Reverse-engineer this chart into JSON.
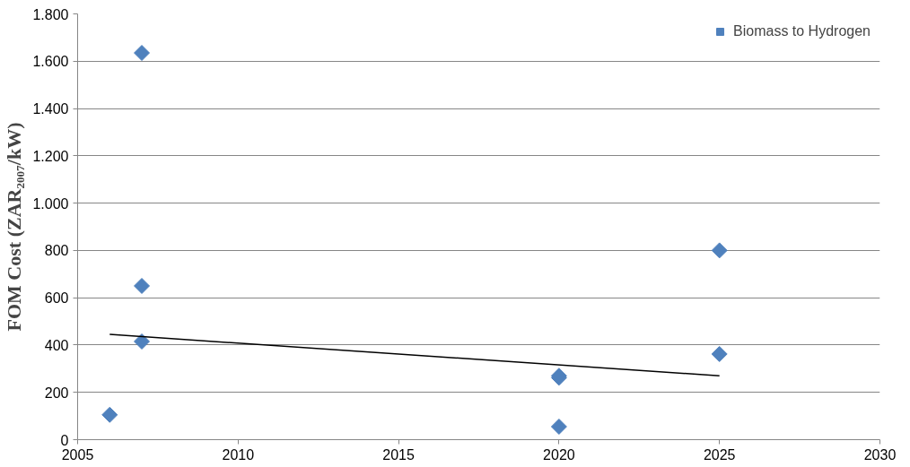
{
  "chart_data": {
    "type": "scatter",
    "ylabel": "FOM Cost (ZAR₂₀₀₇/kW)",
    "xlim": [
      2005,
      2030
    ],
    "xticks": [
      2005,
      2010,
      2015,
      2020,
      2025,
      2030
    ],
    "ylim": [
      0,
      1800
    ],
    "yticks": [
      {
        "value": 0,
        "label": "0"
      },
      {
        "value": 200,
        "label": "200"
      },
      {
        "value": 400,
        "label": "400"
      },
      {
        "value": 600,
        "label": "600"
      },
      {
        "value": 800,
        "label": "800"
      },
      {
        "value": 1000,
        "label": "1.000"
      },
      {
        "value": 1200,
        "label": "1.200"
      },
      {
        "value": 1400,
        "label": "1.400"
      },
      {
        "value": 1600,
        "label": "1.600"
      },
      {
        "value": 1800,
        "label": "1.800"
      }
    ],
    "grid": "y",
    "legend": "top right",
    "series": [
      {
        "name": "Biomass to Hydrogen",
        "color": "#4f81bd",
        "marker": "diamond",
        "x": [
          2006,
          2007,
          2007,
          2007,
          2020,
          2020,
          2020,
          2025,
          2025
        ],
        "values": [
          105,
          1635,
          650,
          415,
          270,
          262,
          55,
          800,
          362
        ]
      },
      {
        "type": "line",
        "color": "#000000",
        "x": [
          2006,
          2025
        ],
        "values": [
          445,
          270
        ]
      }
    ]
  }
}
